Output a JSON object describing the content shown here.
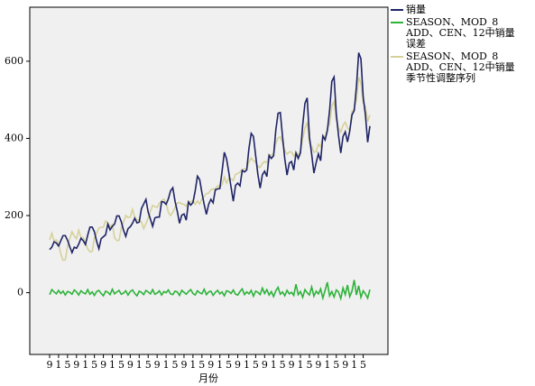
{
  "chart_data": {
    "type": "line",
    "x_label": "月份",
    "categories": [
      "9",
      null,
      null,
      null,
      "1",
      null,
      null,
      null,
      "5",
      null,
      null,
      null,
      "9",
      null,
      null,
      null,
      "1",
      null,
      null,
      null,
      "5",
      null,
      null,
      null,
      "9",
      null,
      null,
      null,
      "1",
      null,
      null,
      null,
      "5",
      null,
      null,
      null,
      "9",
      null,
      null,
      null,
      "1",
      null,
      null,
      null,
      "5",
      null,
      null,
      null,
      "9",
      null,
      null,
      null,
      "1",
      null,
      null,
      null,
      "5",
      null,
      null,
      null,
      "9",
      null,
      null,
      null,
      "1",
      null,
      null,
      null,
      "5",
      null,
      null,
      null,
      "9",
      null,
      null,
      null,
      "1",
      null,
      null,
      null,
      "5",
      null,
      null,
      null,
      "9",
      null,
      null,
      null,
      "1",
      null,
      null,
      null,
      "5",
      null,
      null,
      null,
      "9",
      null,
      null,
      null,
      "1",
      null,
      null,
      null,
      "5",
      null,
      null,
      null,
      "9",
      null,
      null,
      null,
      "1",
      null,
      null,
      null,
      "5",
      null,
      null,
      null,
      "9",
      null,
      null,
      null,
      "1",
      null,
      null,
      null,
      "5",
      null,
      null,
      null,
      "9",
      null,
      null,
      null,
      "1",
      null,
      null,
      null,
      "5",
      null,
      null,
      null
    ],
    "ylim": [
      -160,
      740
    ],
    "yticks": [
      0,
      200,
      400,
      600
    ],
    "grid": false,
    "series": [
      {
        "name": "销量",
        "color": "#1f2466",
        "values": [
          112,
          118,
          132,
          129,
          121,
          135,
          148,
          148,
          136,
          119,
          104,
          118,
          115,
          126,
          141,
          135,
          125,
          149,
          170,
          170,
          158,
          133,
          114,
          140,
          145,
          150,
          178,
          163,
          172,
          178,
          199,
          199,
          184,
          162,
          146,
          166,
          171,
          180,
          193,
          181,
          183,
          218,
          230,
          242,
          209,
          191,
          172,
          194,
          196,
          196,
          236,
          235,
          229,
          243,
          264,
          272,
          237,
          211,
          180,
          201,
          204,
          188,
          235,
          227,
          234,
          264,
          302,
          293,
          259,
          229,
          203,
          229,
          242,
          233,
          267,
          269,
          270,
          315,
          364,
          347,
          312,
          274,
          237,
          278,
          284,
          277,
          317,
          313,
          318,
          374,
          413,
          405,
          355,
          306,
          271,
          306,
          315,
          301,
          356,
          348,
          355,
          422,
          465,
          467,
          404,
          347,
          305,
          336,
          340,
          318,
          362,
          348,
          363,
          435,
          491,
          505,
          404,
          359,
          310,
          337,
          360,
          342,
          406,
          396,
          420,
          472,
          548,
          559,
          463,
          407,
          362,
          405,
          417,
          391,
          419,
          461,
          472,
          535,
          622,
          606,
          508,
          461,
          390,
          432
        ]
      },
      {
        "name": "SEASON、MOD_8 ADD、CEN、12中销量 误差",
        "color": "#2db33a",
        "values": [
          -5,
          8,
          2,
          -3,
          6,
          -2,
          4,
          -6,
          3,
          1,
          -4,
          7,
          2,
          -6,
          5,
          0,
          -3,
          8,
          -4,
          2,
          -7,
          3,
          6,
          -2,
          -8,
          4,
          1,
          -5,
          9,
          -3,
          2,
          6,
          -4,
          -1,
          5,
          -6,
          3,
          7,
          -2,
          -8,
          4,
          1,
          -5,
          6,
          2,
          -3,
          8,
          -4,
          -1,
          5,
          -6,
          3,
          0,
          7,
          -3,
          -5,
          4,
          2,
          -7,
          6,
          1,
          -4,
          3,
          8,
          -2,
          -6,
          5,
          0,
          -3,
          9,
          -5,
          2,
          4,
          -7,
          1,
          6,
          -3,
          2,
          -8,
          5,
          3,
          -2,
          7,
          -4,
          -6,
          3,
          10,
          -5,
          2,
          -3,
          6,
          -9,
          4,
          1,
          -5,
          12,
          -2,
          8,
          -6,
          3,
          -10,
          5,
          14,
          -4,
          2,
          -8,
          6,
          -3,
          1,
          -7,
          22,
          -5,
          3,
          -12,
          8,
          0,
          -6,
          15,
          -9,
          4,
          -3,
          10,
          -14,
          6,
          27,
          -8,
          3,
          -11,
          7,
          2,
          -15,
          12,
          -5,
          20,
          -10,
          4,
          33,
          -6,
          18,
          -12,
          5,
          -3,
          -14,
          8
        ]
      },
      {
        "name": "SEASON、MOD_8 ADD、CEN、12中销量 季节性调整序列",
        "color": "#d6d19a",
        "values": [
          137,
          154,
          134,
          137,
          126,
          100,
          84,
          85,
          120,
          140,
          158,
          147,
          140,
          162,
          143,
          143,
          130,
          114,
          106,
          107,
          142,
          154,
          168,
          169,
          170,
          186,
          180,
          171,
          177,
          143,
          135,
          136,
          168,
          183,
          200,
          195,
          196,
          216,
          195,
          189,
          188,
          183,
          166,
          179,
          193,
          212,
          226,
          223,
          221,
          232,
          238,
          243,
          234,
          208,
          200,
          209,
          221,
          232,
          234,
          230,
          229,
          224,
          237,
          235,
          239,
          229,
          238,
          230,
          243,
          250,
          257,
          258,
          267,
          269,
          269,
          277,
          275,
          280,
          300,
          284,
          296,
          295,
          291,
          307,
          309,
          313,
          319,
          321,
          323,
          339,
          349,
          342,
          339,
          327,
          325,
          335,
          340,
          337,
          358,
          356,
          360,
          387,
          401,
          404,
          388,
          368,
          359,
          365,
          365,
          354,
          364,
          356,
          368,
          400,
          427,
          442,
          388,
          380,
          364,
          366,
          385,
          378,
          408,
          404,
          425,
          437,
          484,
          496,
          447,
          428,
          416,
          434,
          442,
          427,
          421,
          469,
          477,
          500,
          558,
          543,
          492,
          482,
          444,
          461
        ]
      }
    ]
  }
}
